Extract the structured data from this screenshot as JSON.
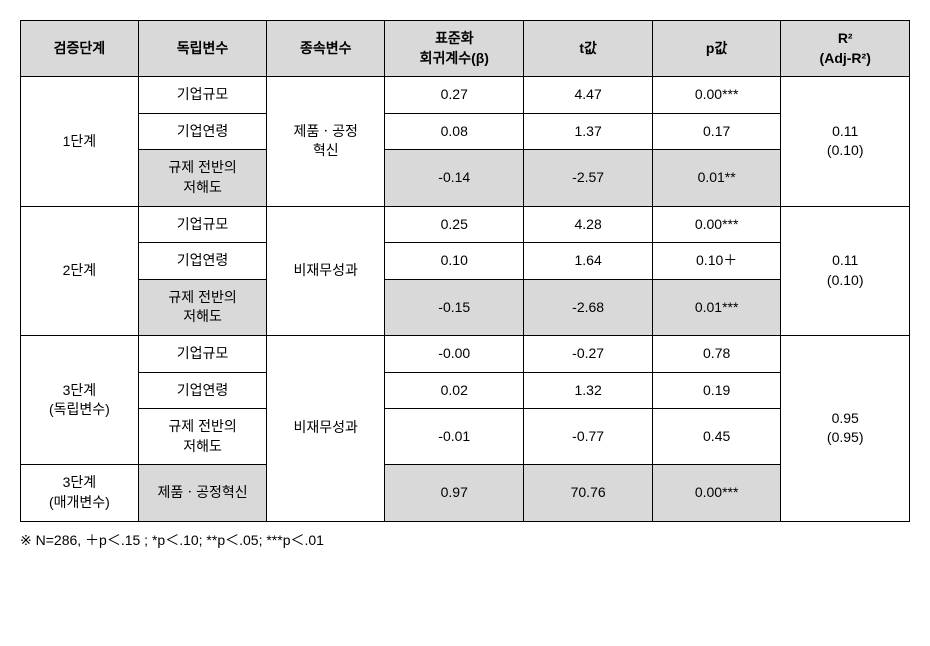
{
  "headers": {
    "stage": "검증단계",
    "indep": "독립변수",
    "dep": "종속변수",
    "beta_line1": "표준화",
    "beta_line2": "회귀계수(β)",
    "t": "t값",
    "p": "p값",
    "r2_line1": "R²",
    "r2_line2": "(Adj-R²)"
  },
  "stages": {
    "s1": {
      "label": "1단계",
      "dep_line1": "제품ㆍ공정",
      "dep_line2": "혁신",
      "r2_line1": "0.11",
      "r2_line2": "(0.10)",
      "rows": [
        {
          "iv": "기업규모",
          "beta": "0.27",
          "t": "4.47",
          "p": "0.00***",
          "hl": false
        },
        {
          "iv": "기업연령",
          "beta": "0.08",
          "t": "1.37",
          "p": "0.17",
          "hl": false
        },
        {
          "iv_line1": "규제 전반의",
          "iv_line2": "저해도",
          "beta": "-0.14",
          "t": "-2.57",
          "p": "0.01**",
          "hl": true
        }
      ]
    },
    "s2": {
      "label": "2단계",
      "dep": "비재무성과",
      "r2_line1": "0.11",
      "r2_line2": "(0.10)",
      "rows": [
        {
          "iv": "기업규모",
          "beta": "0.25",
          "t": "4.28",
          "p": "0.00***",
          "hl": false
        },
        {
          "iv": "기업연령",
          "beta": "0.10",
          "t": "1.64",
          "p": "0.10＋",
          "hl": false
        },
        {
          "iv_line1": "규제 전반의",
          "iv_line2": "저해도",
          "beta": "-0.15",
          "t": "-2.68",
          "p": "0.01***",
          "hl": true
        }
      ]
    },
    "s3a": {
      "label_line1": "3단계",
      "label_line2": "(독립변수)",
      "dep": "비재무성과",
      "r2_line1": "0.95",
      "r2_line2": "(0.95)",
      "rows": [
        {
          "iv": "기업규모",
          "beta": "-0.00",
          "t": "-0.27",
          "p": "0.78",
          "hl": false
        },
        {
          "iv": "기업연령",
          "beta": "0.02",
          "t": "1.32",
          "p": "0.19",
          "hl": false
        },
        {
          "iv_line1": "규제 전반의",
          "iv_line2": "저해도",
          "beta": "-0.01",
          "t": "-0.77",
          "p": "0.45",
          "hl": false
        }
      ]
    },
    "s3b": {
      "label_line1": "3단계",
      "label_line2": "(매개변수)",
      "row": {
        "iv": "제품ㆍ공정혁신",
        "beta": "0.97",
        "t": "70.76",
        "p": "0.00***",
        "hl": true
      }
    }
  },
  "footnote": "※ N=286, ＋p＜.15 ; *p＜.10; **p＜.05; ***p＜.01"
}
